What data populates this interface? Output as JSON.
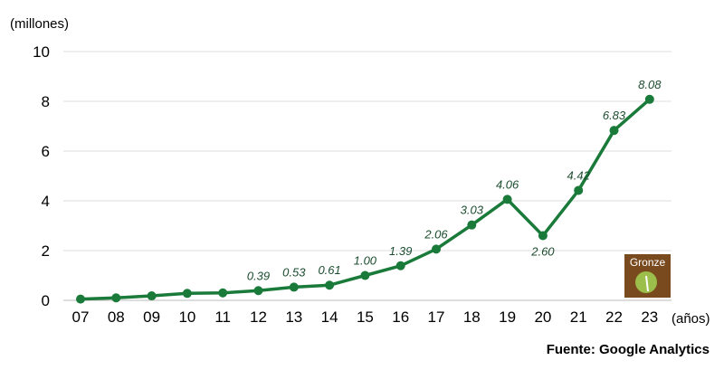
{
  "chart_data": {
    "type": "line",
    "ylabel": "(millones)",
    "xlabel": "(años)",
    "x": [
      "07",
      "08",
      "09",
      "10",
      "11",
      "12",
      "13",
      "14",
      "15",
      "16",
      "17",
      "18",
      "19",
      "20",
      "21",
      "22",
      "23"
    ],
    "series": [
      {
        "values": [
          0.05,
          0.1,
          0.18,
          0.28,
          0.3,
          0.39,
          0.53,
          0.61,
          1.0,
          1.39,
          2.06,
          3.03,
          4.06,
          2.6,
          4.42,
          6.83,
          8.08
        ],
        "labels": [
          "",
          "",
          "",
          "",
          "",
          "0.39",
          "0.53",
          "0.61",
          "1.00",
          "1.39",
          "2.06",
          "3.03",
          "4.06",
          "2.60",
          "4.42",
          "6.83",
          "8.08"
        ]
      }
    ],
    "ylim": [
      0,
      10
    ],
    "yticks": [
      "0",
      "2",
      "4",
      "6",
      "8",
      "10"
    ],
    "grid": true,
    "line_color": "#1a7a3a",
    "grid_color": "#dddddd"
  },
  "source": "Fuente: Google Analytics",
  "logo": {
    "text": "Gronze",
    "bg_color": "#7a4a1f",
    "leaf_color": "#9bbf4a"
  }
}
